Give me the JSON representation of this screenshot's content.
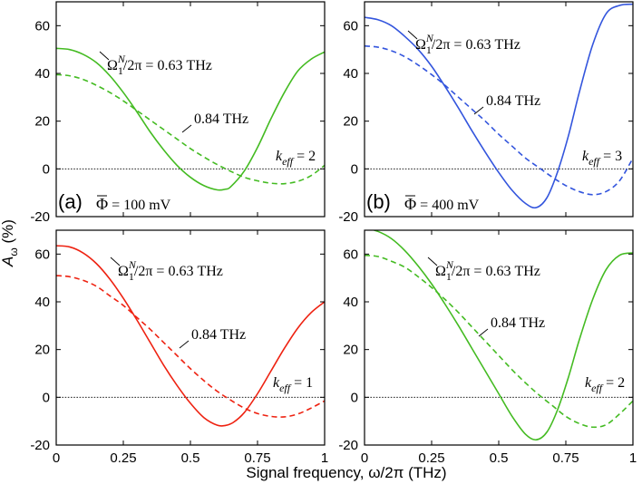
{
  "figure": {
    "xlabel": "Signal frequency, ω/2π (THz)",
    "ylabel_main": "A",
    "ylabel_sub": "ω",
    "ylabel_unit": " (%)"
  },
  "legend_text": {
    "omega_pre": "Ω",
    "omega_sup": "N",
    "omega_sub": "1",
    "omega_post": "/2π = 0.63 THz",
    "dashed": "0.84 THz",
    "keff_k": "k",
    "keff_sub": "eff"
  },
  "chart_data": [
    {
      "type": "line",
      "panel": "top-left",
      "panel_label": "(a)",
      "phi_symbol": "Φ",
      "phi_value": "= 100 mV",
      "keff_value": "= 2",
      "color": "#44bb22",
      "xlim": [
        0,
        1
      ],
      "ylim": [
        -20,
        70
      ],
      "xticks": [
        0,
        0.25,
        0.5,
        0.75,
        1
      ],
      "xtick_labels": [
        "0",
        "0.25",
        "0.5",
        "0.75",
        "1"
      ],
      "yticks": [
        -20,
        0,
        20,
        40,
        60
      ],
      "ytick_labels": [
        "-20",
        "0",
        "20",
        "40",
        "60"
      ],
      "series": [
        {
          "name": "Ω1N/2π = 0.63 THz",
          "style": "solid",
          "x": [
            0,
            0.05,
            0.1,
            0.15,
            0.2,
            0.25,
            0.3,
            0.35,
            0.4,
            0.45,
            0.5,
            0.55,
            0.6,
            0.63,
            0.65,
            0.7,
            0.75,
            0.8,
            0.85,
            0.9,
            0.95,
            1.0
          ],
          "y": [
            50.5,
            50,
            48,
            44.5,
            39,
            32,
            24,
            15.5,
            8,
            1.5,
            -3.5,
            -7,
            -8.8,
            -8.5,
            -7.5,
            -1,
            9,
            21,
            32,
            41,
            46,
            49
          ]
        },
        {
          "name": "0.84 THz",
          "style": "dashed",
          "x": [
            0,
            0.05,
            0.1,
            0.15,
            0.2,
            0.25,
            0.3,
            0.35,
            0.4,
            0.45,
            0.5,
            0.55,
            0.6,
            0.65,
            0.7,
            0.75,
            0.8,
            0.85,
            0.9,
            0.95,
            1.0
          ],
          "y": [
            39.5,
            39,
            37.5,
            35,
            32,
            28.5,
            24.5,
            20.5,
            16.5,
            12.5,
            8.5,
            5,
            1.8,
            -1,
            -3.5,
            -5,
            -6,
            -6.2,
            -5.2,
            -2.8,
            1.5
          ]
        }
      ]
    },
    {
      "type": "line",
      "panel": "top-right",
      "panel_label": "(b)",
      "phi_symbol": "Φ",
      "phi_value": "= 400 mV",
      "keff_value": "= 3",
      "color": "#3355dd",
      "xlim": [
        0,
        1
      ],
      "ylim": [
        -20,
        70
      ],
      "xticks": [
        0,
        0.25,
        0.5,
        0.75,
        1
      ],
      "xtick_labels": [
        "0",
        "0.25",
        "0.5",
        "0.75",
        "1"
      ],
      "yticks": [
        -20,
        0,
        20,
        40,
        60
      ],
      "ytick_labels": [
        "-20",
        "0",
        "20",
        "40",
        "60"
      ],
      "series": [
        {
          "name": "Ω1N/2π = 0.63 THz",
          "style": "solid",
          "x": [
            0,
            0.05,
            0.1,
            0.15,
            0.2,
            0.25,
            0.3,
            0.35,
            0.4,
            0.45,
            0.5,
            0.55,
            0.6,
            0.64,
            0.68,
            0.72,
            0.76,
            0.8,
            0.85,
            0.9,
            0.95,
            1.0
          ],
          "y": [
            63.5,
            62.5,
            60,
            55.5,
            50,
            43,
            34.5,
            25.5,
            16,
            7,
            -1.5,
            -9,
            -14.5,
            -16.2,
            -12,
            -1,
            14,
            32,
            52,
            65,
            68.5,
            69
          ]
        },
        {
          "name": "0.84 THz",
          "style": "dashed",
          "x": [
            0,
            0.05,
            0.1,
            0.15,
            0.2,
            0.25,
            0.3,
            0.35,
            0.4,
            0.45,
            0.5,
            0.55,
            0.6,
            0.65,
            0.7,
            0.75,
            0.8,
            0.85,
            0.9,
            0.95,
            1.0
          ],
          "y": [
            51.5,
            51,
            49.5,
            47,
            43.5,
            39.5,
            35,
            30,
            25,
            20,
            14.5,
            9.5,
            4.5,
            0.5,
            -3.5,
            -7,
            -9.5,
            -10.8,
            -9.5,
            -5,
            4.5
          ]
        }
      ]
    },
    {
      "type": "line",
      "panel": "bottom-left",
      "keff_value": "= 1",
      "color": "#ee2211",
      "xlim": [
        0,
        1
      ],
      "ylim": [
        -20,
        70
      ],
      "xticks": [
        0,
        0.25,
        0.5,
        0.75,
        1
      ],
      "xtick_labels": [
        "0",
        "0.25",
        "0.5",
        "0.75",
        "1"
      ],
      "yticks": [
        -20,
        0,
        20,
        40,
        60
      ],
      "ytick_labels": [
        "-20",
        "0",
        "20",
        "40",
        "60"
      ],
      "series": [
        {
          "name": "Ω1N/2π = 0.63 THz",
          "style": "solid",
          "x": [
            0,
            0.05,
            0.1,
            0.15,
            0.2,
            0.25,
            0.3,
            0.35,
            0.4,
            0.45,
            0.5,
            0.55,
            0.6,
            0.63,
            0.66,
            0.7,
            0.75,
            0.8,
            0.85,
            0.9,
            0.95,
            1.0
          ],
          "y": [
            63.5,
            63,
            60.5,
            56,
            49.5,
            41.5,
            32.5,
            23,
            13.5,
            5,
            -2.5,
            -8.5,
            -11.7,
            -11.8,
            -10.5,
            -6.5,
            1.5,
            11,
            20.5,
            29,
            35.5,
            40
          ]
        },
        {
          "name": "0.84 THz",
          "style": "dashed",
          "x": [
            0,
            0.05,
            0.1,
            0.15,
            0.2,
            0.25,
            0.3,
            0.35,
            0.4,
            0.45,
            0.5,
            0.55,
            0.6,
            0.65,
            0.7,
            0.75,
            0.8,
            0.85,
            0.9,
            0.95,
            1.0
          ],
          "y": [
            51,
            50.5,
            49,
            46.5,
            42.5,
            38.5,
            33.5,
            28.5,
            23,
            17.5,
            12,
            7,
            2.5,
            -1.2,
            -4.5,
            -6.8,
            -8,
            -8.2,
            -7,
            -4.5,
            -1.5
          ]
        }
      ]
    },
    {
      "type": "line",
      "panel": "bottom-right",
      "keff_value": "= 2",
      "color": "#44bb22",
      "xlim": [
        0,
        1
      ],
      "ylim": [
        -20,
        70
      ],
      "xticks": [
        0,
        0.25,
        0.5,
        0.75,
        1
      ],
      "xtick_labels": [
        "0",
        "0.25",
        "0.5",
        "0.75",
        "1"
      ],
      "yticks": [
        -20,
        0,
        20,
        40,
        60
      ],
      "ytick_labels": [
        "-20",
        "0",
        "20",
        "40",
        "60"
      ],
      "series": [
        {
          "name": "Ω1N/2π = 0.63 THz",
          "style": "solid",
          "x": [
            0,
            0.05,
            0.1,
            0.15,
            0.2,
            0.25,
            0.3,
            0.35,
            0.4,
            0.45,
            0.5,
            0.55,
            0.6,
            0.64,
            0.68,
            0.72,
            0.76,
            0.8,
            0.85,
            0.9,
            0.95,
            1.0
          ],
          "y": [
            71,
            69.5,
            66.5,
            61.5,
            55,
            47.5,
            39,
            30,
            20.5,
            11,
            1.5,
            -8,
            -15.5,
            -17.8,
            -14.5,
            -5,
            8.5,
            24,
            41,
            53.5,
            59.5,
            60.5
          ]
        },
        {
          "name": "0.84 THz",
          "style": "dashed",
          "x": [
            0,
            0.05,
            0.1,
            0.15,
            0.2,
            0.25,
            0.3,
            0.35,
            0.4,
            0.45,
            0.5,
            0.55,
            0.6,
            0.65,
            0.7,
            0.75,
            0.8,
            0.85,
            0.9,
            0.95,
            1.0
          ],
          "y": [
            59.5,
            59,
            57,
            54.5,
            50.5,
            46,
            41,
            35.5,
            29.5,
            23.5,
            17.5,
            11.5,
            6,
            1,
            -3.5,
            -8,
            -11,
            -12.5,
            -11.5,
            -7,
            -1.5
          ]
        }
      ]
    }
  ]
}
